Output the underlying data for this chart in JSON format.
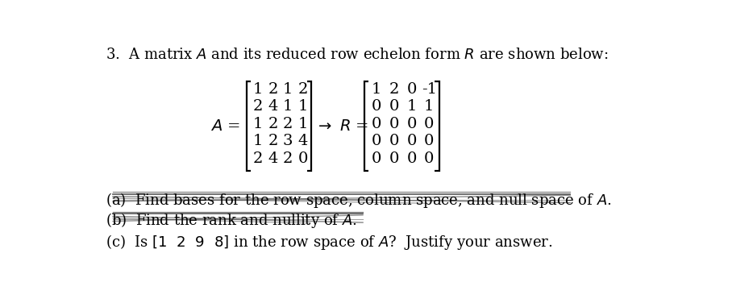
{
  "matrix_A": [
    [
      1,
      2,
      1,
      2
    ],
    [
      2,
      4,
      1,
      1
    ],
    [
      1,
      2,
      2,
      1
    ],
    [
      1,
      2,
      3,
      4
    ],
    [
      2,
      4,
      2,
      0
    ]
  ],
  "matrix_R": [
    [
      1,
      2,
      0,
      -1
    ],
    [
      0,
      0,
      1,
      1
    ],
    [
      0,
      0,
      0,
      0
    ],
    [
      0,
      0,
      0,
      0
    ],
    [
      0,
      0,
      0,
      0
    ]
  ],
  "bg_color": "#ffffff",
  "text_color": "#000000",
  "strike_color": "#333333"
}
